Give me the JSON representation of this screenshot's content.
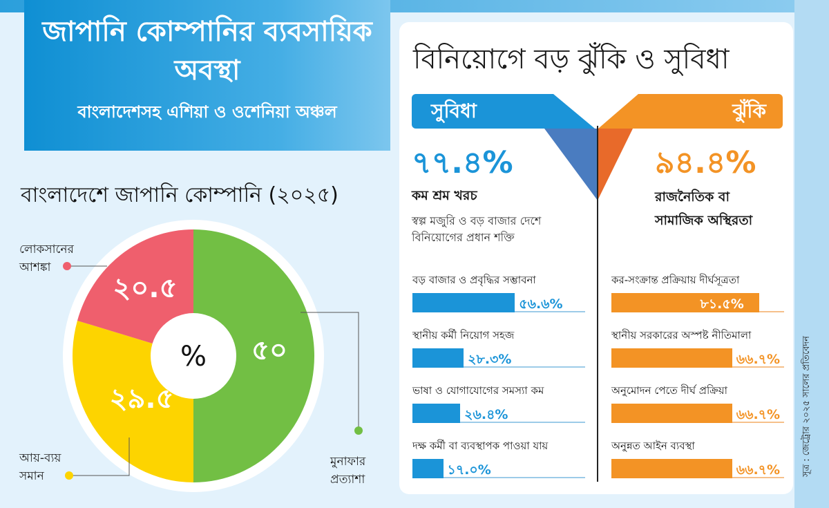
{
  "header": {
    "title": "জাপানি কোম্পানির ব্যবসায়িক অবস্থা",
    "subtitle": "বাংলাদেশসহ এশিয়া ও ওশেনিয়া অঞ্চল"
  },
  "colors": {
    "blue": "#1b94d8",
    "orange": "#f39325",
    "green": "#72bf44",
    "yellow": "#fdd400",
    "red": "#ef5f6d"
  },
  "chart_data": [
    {
      "type": "pie",
      "title": "বাংলাদেশে জাপানি কোম্পানি (২০২৫)",
      "center_label": "%",
      "slices": [
        {
          "label": "মুনাফার প্রত্যাশা",
          "value": 50,
          "value_label": "৫০",
          "color": "#72bf44"
        },
        {
          "label": "আয়-ব্যয় সমান",
          "value": 29.5,
          "value_label": "২৯.৫",
          "color": "#fdd400"
        },
        {
          "label": "লোকসানের আশঙ্কা",
          "value": 20.5,
          "value_label": "২০.৫",
          "color": "#ef5f6d"
        }
      ]
    },
    {
      "type": "bar",
      "title": "বিনিয়োগে বড় ঝুঁকি ও সুবিধা",
      "group": "সুবিধা",
      "color": "#1b94d8",
      "headline": {
        "value": 77.4,
        "value_label": "৭৭.৪%",
        "label": "কম শ্রম খরচ",
        "note": "স্বল্প মজুরি ও বড় বাজার দেশে বিনিয়োগের প্রধান শক্তি"
      },
      "categories": [
        "বড় বাজার ও প্রবৃদ্ধির সম্ভাবনা",
        "স্থানীয় কর্মী নিয়োগ সহজ",
        "ভাষা ও যোগাযোগের সমস্যা কম",
        "দক্ষ কর্মী বা ব্যবস্থাপক পাওয়া যায়"
      ],
      "values": [
        56.6,
        28.3,
        26.4,
        17.0
      ],
      "value_labels": [
        "৫৬.৬%",
        "২৮.৩%",
        "২৬.৪%",
        "১৭.০%"
      ]
    },
    {
      "type": "bar",
      "group": "ঝুঁকি",
      "color": "#f39325",
      "headline": {
        "value": 94.4,
        "value_label": "৯৪.৪%",
        "label": "রাজনৈতিক বা সামাজিক অস্থিরতা"
      },
      "categories": [
        "কর-সংক্রান্ত প্রক্রিয়ায় দীর্ঘসূত্রতা",
        "স্থানীয় সরকারের অস্পষ্ট নীতিমালা",
        "অনুমোদন পেতে দীর্ঘ প্রক্রিয়া",
        "অনুন্নত আইন ব্যবস্থা"
      ],
      "values": [
        81.5,
        66.7,
        66.7,
        66.7
      ],
      "value_labels": [
        "৮১.৫%",
        "৬৬.৭%",
        "৬৬.৭%",
        "৬৬.৭%"
      ]
    }
  ],
  "source": "সূত্র : জেট্রোর ২০২৫ সালের প্রতিবেদন"
}
